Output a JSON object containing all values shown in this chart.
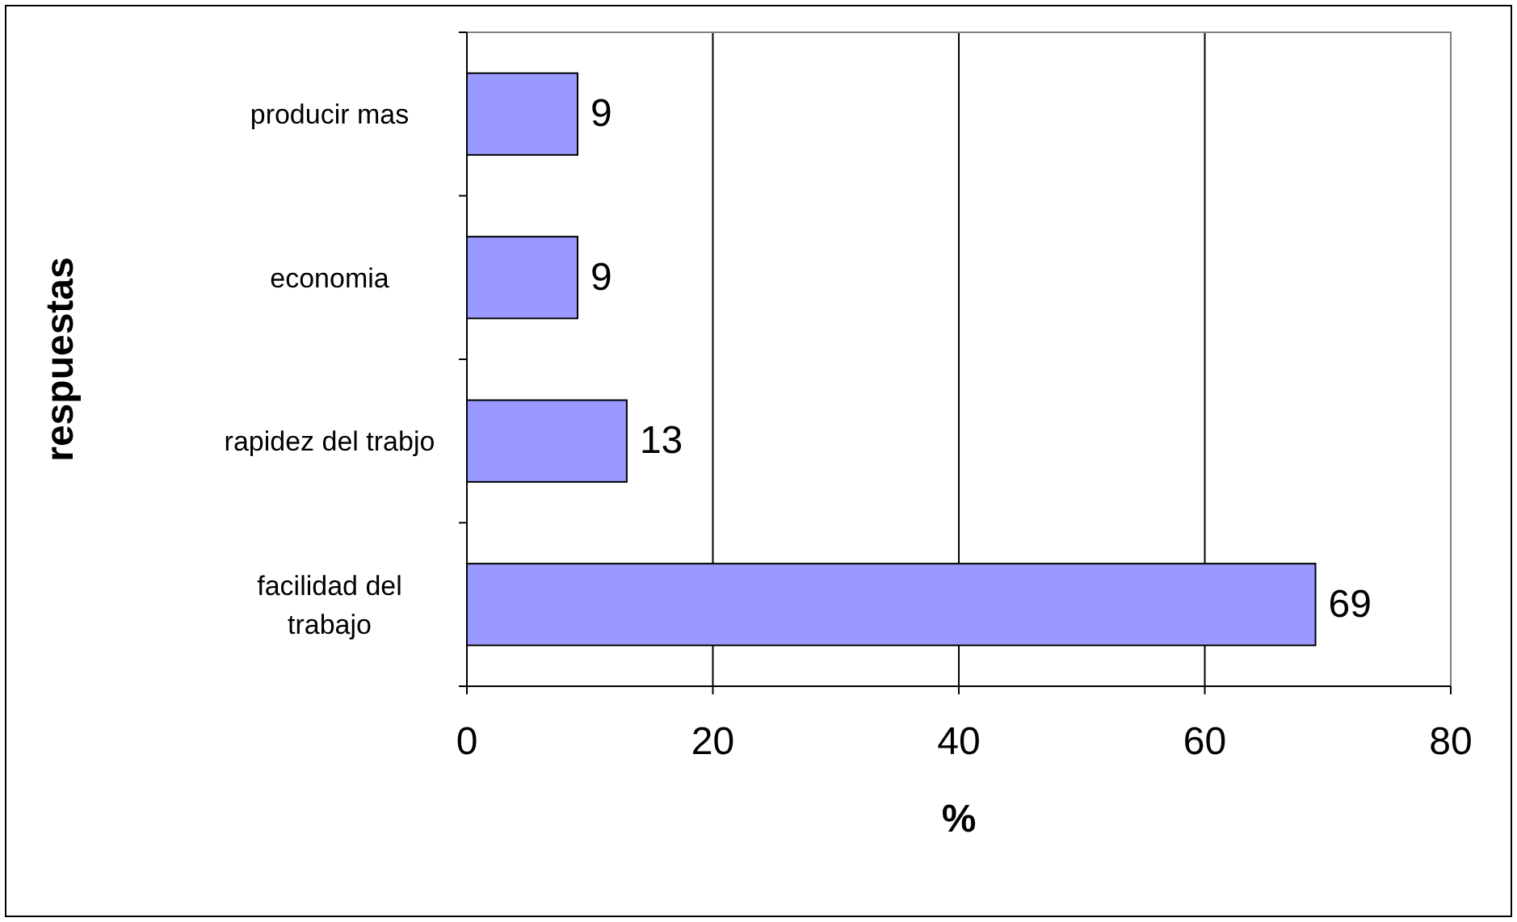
{
  "chart_data": {
    "type": "bar",
    "orientation": "horizontal",
    "xlabel": "%",
    "ylabel": "respuestas",
    "categories": [
      "producir mas",
      "economia",
      "rapidez del trabjo",
      "facilidad del trabajo"
    ],
    "values": [
      9,
      9,
      13,
      69
    ],
    "color": "#9999ff",
    "xlim": [
      0,
      80
    ],
    "xticks": [
      0,
      20,
      40,
      60,
      80
    ],
    "grid": "x",
    "data_labels": true
  }
}
